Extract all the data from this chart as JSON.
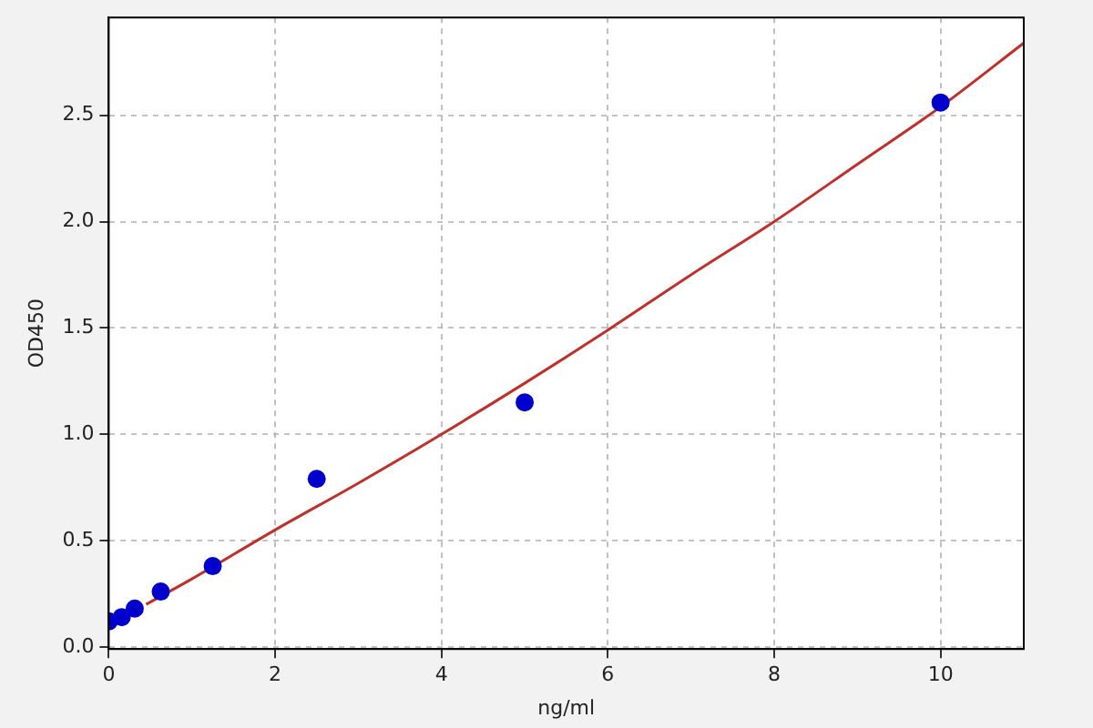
{
  "chart_data": {
    "type": "scatter",
    "xlabel": "ng/ml",
    "ylabel": "OD450",
    "xlim": [
      0,
      11
    ],
    "xticks": [
      0,
      2,
      4,
      6,
      8,
      10
    ],
    "ylim": [
      -0.01,
      2.96
    ],
    "yticks": [
      {
        "value": 0,
        "label": "0.0"
      },
      {
        "value": 0.5,
        "label": "0.5"
      },
      {
        "value": 1,
        "label": "1.0"
      },
      {
        "value": 1.5,
        "label": "1.5"
      },
      {
        "value": 2,
        "label": "2.0"
      },
      {
        "value": 2.5,
        "label": "2.5"
      }
    ],
    "grid": true,
    "series": [
      {
        "type": "line",
        "marker": "none",
        "color": "#c0302a",
        "x": [
          0.45,
          1,
          2,
          3,
          4,
          5,
          6,
          7,
          8,
          9,
          10,
          11
        ],
        "values": [
          0.2,
          0.32,
          0.55,
          0.77,
          1.0,
          1.24,
          1.49,
          1.75,
          2.0,
          2.27,
          2.54,
          2.84
        ]
      },
      {
        "marker": "circle",
        "color": "#0000cc",
        "x": [
          0,
          0.156,
          0.3125,
          0.625,
          1.25,
          2.5,
          5,
          10
        ],
        "values": [
          0.12,
          0.14,
          0.18,
          0.26,
          0.38,
          0.79,
          1.15,
          2.56
        ]
      }
    ]
  }
}
